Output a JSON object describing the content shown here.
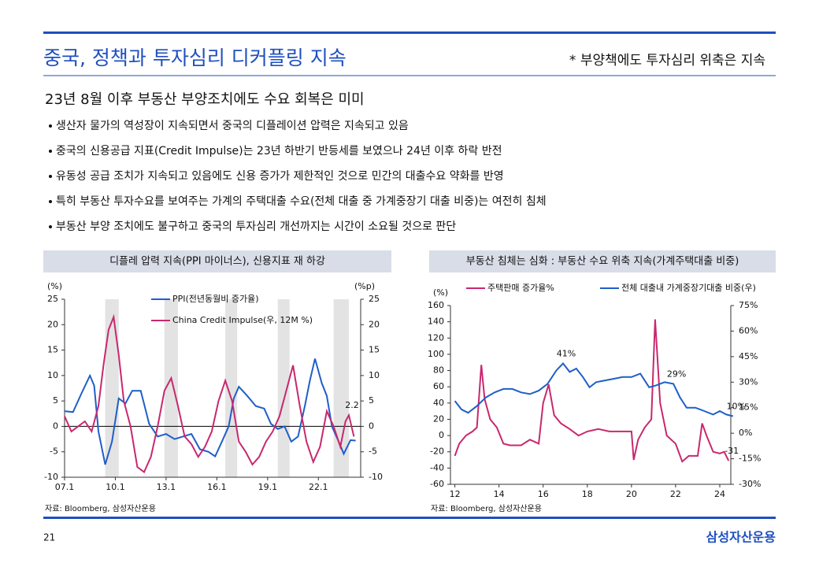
{
  "header": {
    "title": "중국, 정책과 투자심리 디커플링 지속",
    "note": "* 부양책에도 투자심리 위축은 지속"
  },
  "headline": "23년 8월 이후 부동산 부양조치에도 수요 회복은 미미",
  "bullets": [
    "생산자 물가의 역성장이 지속되면서 중국의 디플레이션 압력은 지속되고 있음",
    "중국의 신용공급 지표(Credit Impulse)는 23년 하반기 반등세를 보였으나 24년 이후 하락 반전",
    "유동성 공급 조치가 지속되고 있음에도 신용 증가가 제한적인 것으로 민간의 대출수요 약화를 반영",
    "특히 부동산 투자수요를 보여주는 가계의 주택대출 수요(전체 대출 중 가계중장기 대출 비중)는 여전히 침체",
    "부동산 부양 조치에도 불구하고 중국의 투자심리 개선까지는 시간이 소요될 것으로 판단"
  ],
  "chart_data": [
    {
      "type": "line",
      "title": "디플레 압력 지속(PPI 마이너스), 신용지표 재 하강",
      "y_label": "(%)",
      "y2_label": "(%p)",
      "legend": "top-center",
      "zero_line": true,
      "xlim": [
        2007,
        2024.5
      ],
      "xticks": [
        {
          "value": 2007,
          "label": "07.1"
        },
        {
          "value": 2010,
          "label": "10.1"
        },
        {
          "value": 2013,
          "label": "13.1"
        },
        {
          "value": 2016,
          "label": "16.1"
        },
        {
          "value": 2019,
          "label": "19.1"
        },
        {
          "value": 2022,
          "label": "22.1"
        }
      ],
      "ylim": [
        -10,
        25
      ],
      "yticks": [
        -10,
        -5,
        0,
        5,
        10,
        15,
        20,
        25
      ],
      "y2lim": [
        -10,
        25
      ],
      "y2ticks": [
        -10,
        -5,
        0,
        5,
        10,
        15,
        20,
        25
      ],
      "shading": [
        [
          2009.4,
          2010.2
        ],
        [
          2012.9,
          2013.7
        ],
        [
          2016.5,
          2017.2
        ],
        [
          2019.6,
          2020.3
        ],
        [
          2022.9,
          2023.8
        ]
      ],
      "series": [
        {
          "name": "PPI(전년동월비 증가율)",
          "color": "#1f5fc8",
          "axis": "y",
          "x": [
            2007.0,
            2007.5,
            2008.0,
            2008.5,
            2008.75,
            2009.0,
            2009.4,
            2009.8,
            2010.2,
            2010.6,
            2011.0,
            2011.5,
            2012.0,
            2012.5,
            2013.0,
            2013.5,
            2014.0,
            2014.5,
            2015.0,
            2015.5,
            2015.9,
            2016.3,
            2016.7,
            2017.0,
            2017.3,
            2017.8,
            2018.3,
            2018.8,
            2019.2,
            2019.6,
            2020.0,
            2020.4,
            2020.8,
            2021.2,
            2021.5,
            2021.8,
            2022.2,
            2022.5,
            2022.8,
            2023.2,
            2023.5,
            2023.9,
            2024.2
          ],
          "values": [
            3,
            2.8,
            6.5,
            10,
            8,
            -1,
            -7.5,
            -3,
            5.5,
            4.5,
            7,
            7,
            0.5,
            -2,
            -1.5,
            -2.5,
            -2,
            -1.5,
            -4.5,
            -5,
            -5.9,
            -3,
            0,
            5.5,
            7.8,
            6,
            4,
            3.5,
            0.5,
            -0.5,
            0,
            -3,
            -2,
            4,
            9,
            13.3,
            8.5,
            6,
            0,
            -3,
            -5.4,
            -2.7,
            -2.8
          ]
        },
        {
          "name": "China Credit Impulse(우, 12M %)",
          "color": "#c8286e",
          "axis": "y2",
          "x": [
            2007.0,
            2007.4,
            2007.8,
            2008.2,
            2008.6,
            2009.0,
            2009.3,
            2009.6,
            2009.9,
            2010.2,
            2010.5,
            2010.9,
            2011.3,
            2011.7,
            2012.1,
            2012.5,
            2012.9,
            2013.3,
            2013.7,
            2014.1,
            2014.5,
            2014.9,
            2015.3,
            2015.7,
            2016.1,
            2016.5,
            2016.9,
            2017.3,
            2017.7,
            2018.1,
            2018.5,
            2018.9,
            2019.3,
            2019.7,
            2020.1,
            2020.5,
            2020.9,
            2021.3,
            2021.7,
            2022.1,
            2022.5,
            2022.9,
            2023.3,
            2023.6,
            2023.8,
            2024.1
          ],
          "values": [
            2,
            -1,
            0,
            1,
            -1,
            4,
            12,
            19,
            21.5,
            14,
            5,
            0,
            -8,
            -9,
            -6,
            0,
            7,
            9.5,
            4,
            -2,
            -3.5,
            -6,
            -4,
            -1,
            5,
            9,
            5,
            -3,
            -5,
            -7.5,
            -6,
            -3,
            -1,
            2,
            7,
            12,
            4,
            -3,
            -7,
            -4,
            3,
            0,
            -4,
            1,
            2.2,
            -2
          ]
        }
      ],
      "annotations": [
        {
          "text": "2.2",
          "x": 2023.8,
          "y": 2.2,
          "axis": "y2"
        }
      ],
      "source": "자료: Bloomberg, 삼성자산운용"
    },
    {
      "type": "line",
      "title": "부동산 침체는 심화 : 부동산 수요 위축 지속(가계주택대출 비중)",
      "y_label": "(%)",
      "legend": "top",
      "zero_line": false,
      "xlim": [
        2011.8,
        2024.5
      ],
      "xticks": [
        {
          "value": 2012,
          "label": "12"
        },
        {
          "value": 2014,
          "label": "14"
        },
        {
          "value": 2016,
          "label": "16"
        },
        {
          "value": 2018,
          "label": "18"
        },
        {
          "value": 2020,
          "label": "20"
        },
        {
          "value": 2022,
          "label": "22"
        },
        {
          "value": 2024,
          "label": "24"
        }
      ],
      "ylim": [
        -60,
        160
      ],
      "yticks": [
        -60,
        -40,
        -20,
        0,
        20,
        40,
        60,
        80,
        100,
        120,
        140,
        160
      ],
      "y2lim": [
        -30,
        75
      ],
      "y2ticks": [
        {
          "value": -30,
          "label": "-30%"
        },
        {
          "value": -15,
          "label": "-15%"
        },
        {
          "value": 0,
          "label": "0%"
        },
        {
          "value": 15,
          "label": "15%"
        },
        {
          "value": 30,
          "label": "30%"
        },
        {
          "value": 45,
          "label": "45%"
        },
        {
          "value": 60,
          "label": "60%"
        },
        {
          "value": 75,
          "label": "75%"
        }
      ],
      "series": [
        {
          "name": "주택판매 증가율%",
          "color": "#c8286e",
          "axis": "y",
          "x": [
            2012.0,
            2012.2,
            2012.5,
            2012.8,
            2013.0,
            2013.2,
            2013.35,
            2013.6,
            2013.9,
            2014.2,
            2014.5,
            2015.0,
            2015.4,
            2015.8,
            2016.0,
            2016.25,
            2016.5,
            2016.8,
            2017.2,
            2017.6,
            2018.0,
            2018.5,
            2019.0,
            2019.5,
            2020.0,
            2020.1,
            2020.3,
            2020.6,
            2020.9,
            2021.07,
            2021.3,
            2021.6,
            2022.0,
            2022.3,
            2022.6,
            2023.0,
            2023.2,
            2023.4,
            2023.7,
            2024.0,
            2024.2,
            2024.4
          ],
          "values": [
            -25,
            -10,
            0,
            5,
            10,
            87,
            45,
            20,
            10,
            -10,
            -12,
            -12,
            -5,
            -10,
            40,
            63,
            25,
            15,
            8,
            0,
            5,
            8,
            5,
            5,
            5,
            -30,
            -5,
            10,
            20,
            143,
            40,
            0,
            -10,
            -32,
            -25,
            -25,
            15,
            0,
            -20,
            -22,
            -20,
            -31
          ]
        },
        {
          "name": "전체 대출내 가계중장기대출 비중(우)",
          "color": "#1f5fc8",
          "axis": "y2",
          "x": [
            2012.0,
            2012.3,
            2012.6,
            2013.0,
            2013.4,
            2013.8,
            2014.2,
            2014.6,
            2015.0,
            2015.4,
            2015.8,
            2016.2,
            2016.6,
            2016.9,
            2017.2,
            2017.5,
            2017.8,
            2018.1,
            2018.4,
            2018.8,
            2019.2,
            2019.6,
            2020.0,
            2020.4,
            2020.8,
            2021.1,
            2021.5,
            2021.9,
            2022.2,
            2022.5,
            2022.9,
            2023.3,
            2023.7,
            2024.0,
            2024.3,
            2024.6
          ],
          "values": [
            19,
            14,
            12,
            16,
            21,
            24,
            26,
            26,
            24,
            23,
            25,
            29,
            37,
            41,
            36,
            38,
            33,
            27,
            30,
            31,
            32,
            33,
            33,
            35,
            27,
            28,
            30,
            29,
            21,
            15,
            15,
            13,
            11,
            13,
            11,
            10
          ]
        }
      ],
      "annotations": [
        {
          "text": "41%",
          "x": 2016.9,
          "y": 41,
          "axis": "y2"
        },
        {
          "text": "29%",
          "x": 2021.9,
          "y": 29,
          "axis": "y2"
        },
        {
          "text": "10%",
          "x": 2024.6,
          "y": 10,
          "axis": "y2"
        },
        {
          "text": "-31",
          "x": 2024.4,
          "y": -31,
          "axis": "y"
        }
      ],
      "source": "자료: Bloomberg, 삼성자산운용"
    }
  ],
  "footer": {
    "page": "21",
    "logo": "삼성자산운용"
  }
}
